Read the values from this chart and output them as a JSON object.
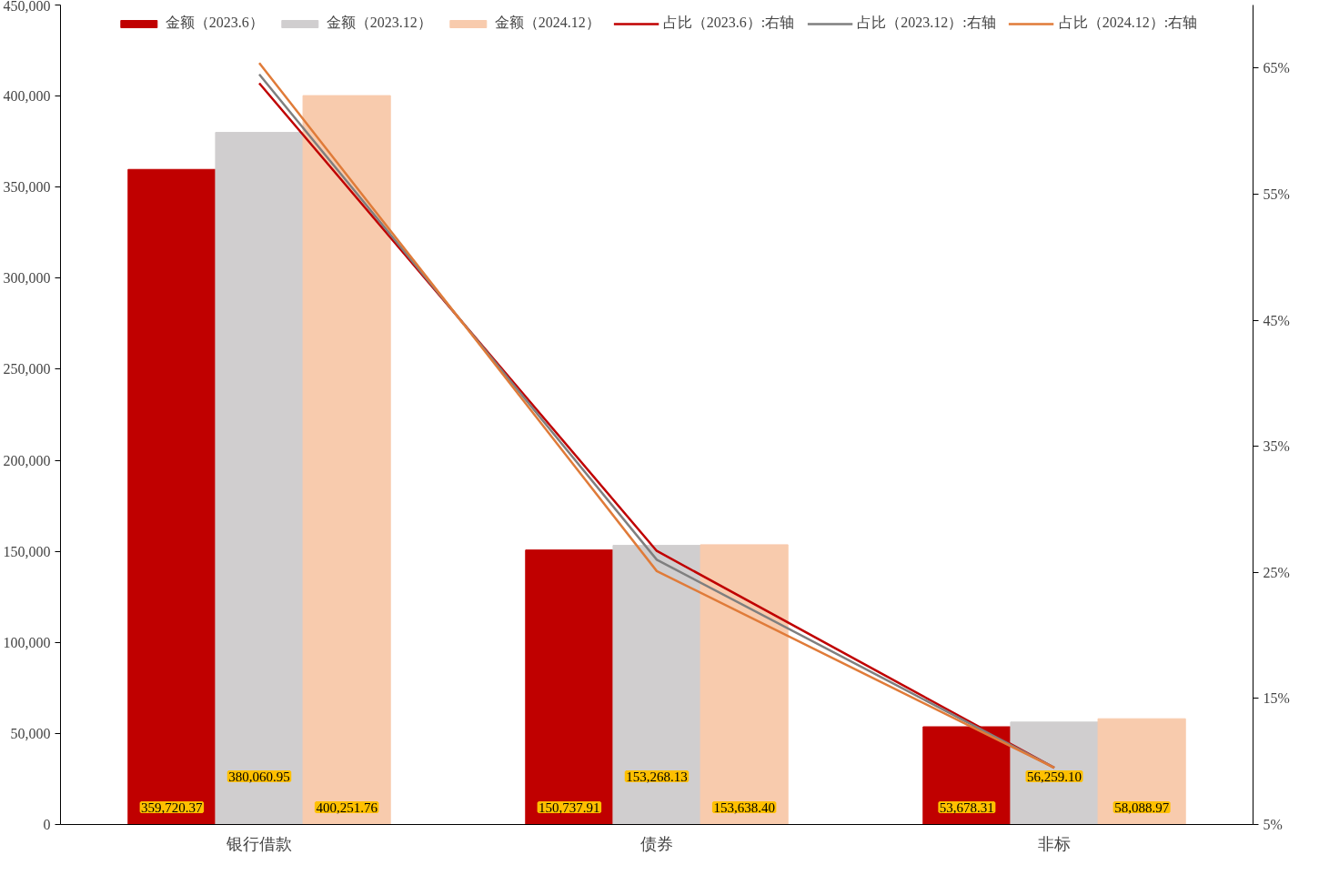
{
  "chart_data": {
    "type": "bar",
    "categories": [
      "银行借款",
      "债券",
      "非标"
    ],
    "ylim": [
      0,
      450000
    ],
    "yticks": [
      {
        "value": 0,
        "label": "0"
      },
      {
        "value": 50000,
        "label": "50,000"
      },
      {
        "value": 100000,
        "label": "100,000"
      },
      {
        "value": 150000,
        "label": "150,000"
      },
      {
        "value": 200000,
        "label": "200,000"
      },
      {
        "value": 250000,
        "label": "250,000"
      },
      {
        "value": 300000,
        "label": "300,000"
      },
      {
        "value": 350000,
        "label": "350,000"
      },
      {
        "value": 400000,
        "label": "400,000"
      },
      {
        "value": 450000,
        "label": "450,000"
      }
    ],
    "y2lim": [
      5,
      70
    ],
    "y2ticks": [
      {
        "value": 5,
        "label": "5%"
      },
      {
        "value": 15,
        "label": "15%"
      },
      {
        "value": 25,
        "label": "25%"
      },
      {
        "value": 35,
        "label": "35%"
      },
      {
        "value": 45,
        "label": "45%"
      },
      {
        "value": 55,
        "label": "55%"
      },
      {
        "value": 65,
        "label": "65%"
      }
    ],
    "grid": false,
    "legend": "top",
    "series": [
      {
        "name": "金额（2023.6）",
        "color": "#c00000",
        "values": [
          359720.37,
          150737.91,
          53678.31
        ],
        "value_labels": [
          "359,720.37",
          "150,737.91",
          "53,678.31"
        ]
      },
      {
        "name": "金额（2023.12）",
        "color": "#d0cecf",
        "values": [
          380060.95,
          153268.13,
          56259.1
        ],
        "value_labels": [
          "380,060.95",
          "153,268.13",
          "56,259.10"
        ]
      },
      {
        "name": "金额（2024.12）",
        "color": "#f8cbad",
        "values": [
          400251.76,
          153638.4,
          58088.97
        ],
        "value_labels": [
          "400,251.76",
          "153,638.40",
          "58,088.97"
        ]
      },
      {
        "name": "占比（2023.6）:右轴",
        "type": "line",
        "axis": "y2",
        "color": "#c00000",
        "values": [
          63.8,
          26.7,
          9.5
        ]
      },
      {
        "name": "占比（2023.12）:右轴",
        "type": "line",
        "axis": "y2",
        "color": "#7f7f7f",
        "values": [
          64.5,
          26.0,
          9.5
        ]
      },
      {
        "name": "占比（2024.12）:右轴",
        "type": "line",
        "axis": "y2",
        "color": "#e07b39",
        "values": [
          65.4,
          25.1,
          9.5
        ]
      }
    ]
  }
}
